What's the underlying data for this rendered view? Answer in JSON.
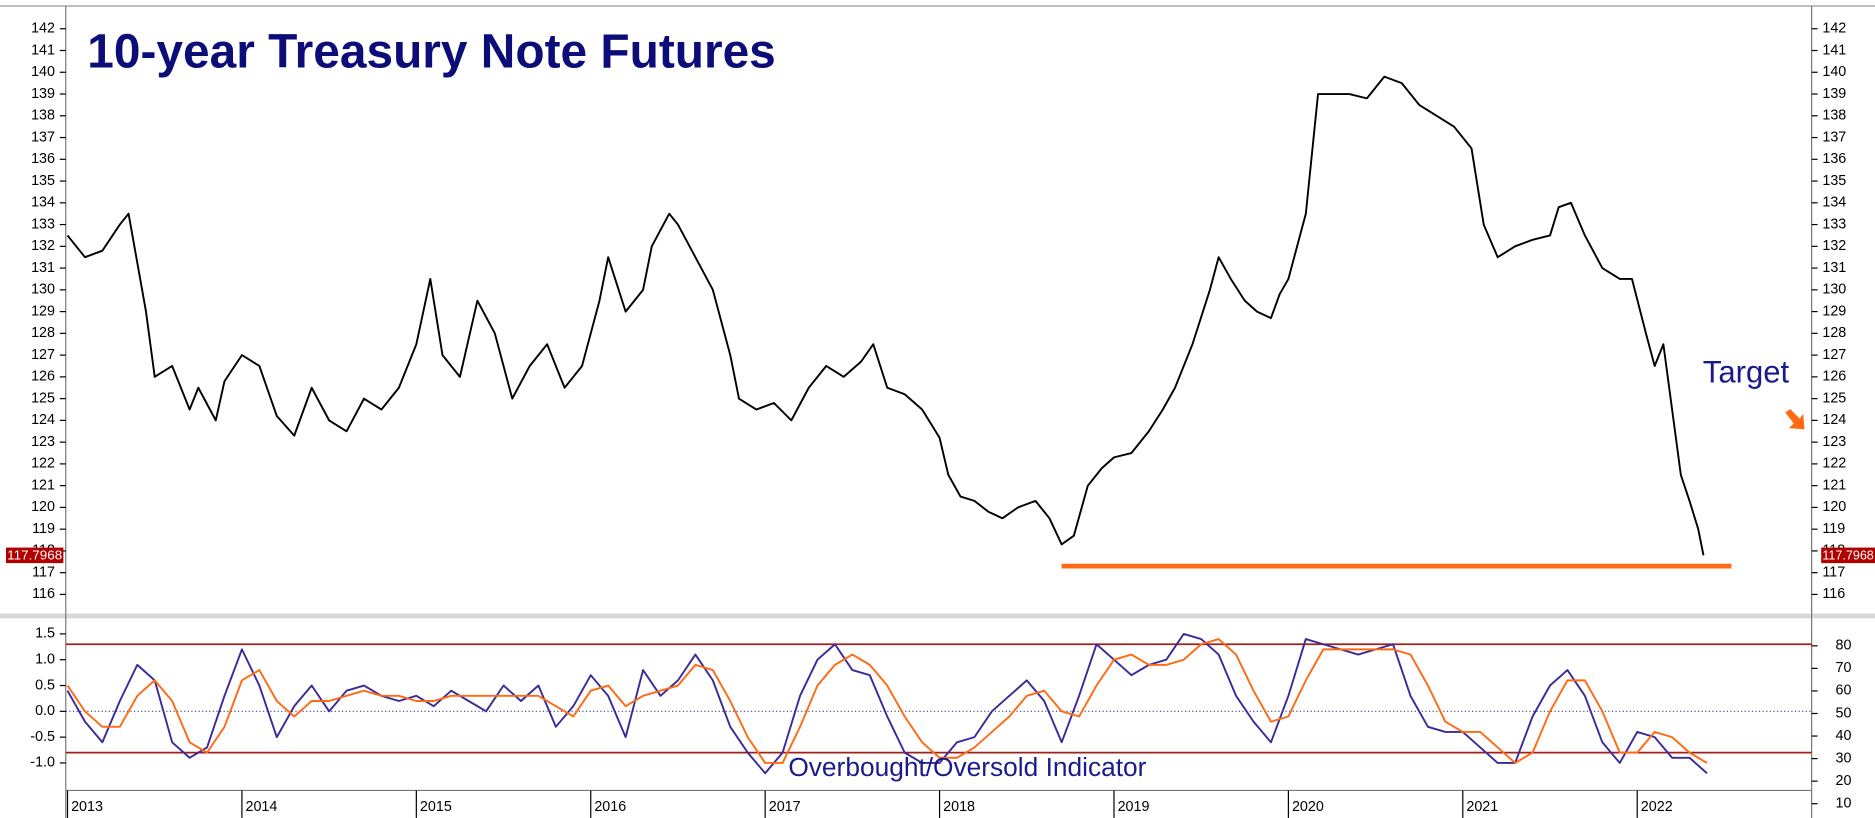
{
  "chart_data": [
    {
      "type": "line",
      "title": "10-year Treasury Note Futures",
      "annotation": "Target",
      "x": [
        2013.0,
        2013.1,
        2013.2,
        2013.3,
        2013.35,
        2013.45,
        2013.5,
        2013.6,
        2013.7,
        2013.75,
        2013.85,
        2013.9,
        2014.0,
        2014.1,
        2014.2,
        2014.3,
        2014.4,
        2014.5,
        2014.6,
        2014.7,
        2014.8,
        2014.9,
        2015.0,
        2015.08,
        2015.15,
        2015.25,
        2015.35,
        2015.45,
        2015.55,
        2015.65,
        2015.75,
        2015.85,
        2015.95,
        2016.05,
        2016.1,
        2016.2,
        2016.3,
        2016.35,
        2016.45,
        2016.5,
        2016.6,
        2016.7,
        2016.8,
        2016.85,
        2016.95,
        2017.05,
        2017.15,
        2017.25,
        2017.35,
        2017.45,
        2017.55,
        2017.62,
        2017.7,
        2017.8,
        2017.9,
        2018.0,
        2018.05,
        2018.12,
        2018.2,
        2018.28,
        2018.36,
        2018.45,
        2018.55,
        2018.63,
        2018.7,
        2018.77,
        2018.85,
        2018.93,
        2019.0,
        2019.1,
        2019.2,
        2019.28,
        2019.35,
        2019.45,
        2019.55,
        2019.6,
        2019.67,
        2019.75,
        2019.82,
        2019.9,
        2019.95,
        2020.0,
        2020.1,
        2020.17,
        2020.25,
        2020.35,
        2020.45,
        2020.55,
        2020.65,
        2020.75,
        2020.85,
        2020.95,
        2021.05,
        2021.12,
        2021.2,
        2021.3,
        2021.4,
        2021.5,
        2021.55,
        2021.62,
        2021.7,
        2021.8,
        2021.9,
        2021.97,
        2022.05,
        2022.1,
        2022.15,
        2022.2,
        2022.25,
        2022.3,
        2022.35,
        2022.38
      ],
      "series": [
        {
          "color": "#000000",
          "values": [
            132.5,
            131.5,
            131.8,
            133.0,
            133.5,
            129,
            126,
            126.5,
            124.5,
            125.5,
            124,
            125.8,
            127,
            126.5,
            124.2,
            123.3,
            125.5,
            124,
            123.5,
            125,
            124.5,
            125.5,
            127.5,
            130.5,
            127,
            126,
            129.5,
            128,
            125,
            126.5,
            127.5,
            125.5,
            126.5,
            129.5,
            131.5,
            129,
            130,
            132,
            133.5,
            133,
            131.5,
            130,
            127,
            125,
            124.5,
            124.8,
            124,
            125.5,
            126.5,
            126,
            126.7,
            127.5,
            125.5,
            125.2,
            124.5,
            123.2,
            121.5,
            120.5,
            120.3,
            119.8,
            119.5,
            120,
            120.3,
            119.5,
            118.3,
            118.7,
            121,
            121.8,
            122.3,
            122.5,
            123.5,
            124.5,
            125.5,
            127.5,
            130,
            131.5,
            130.5,
            129.5,
            129,
            128.7,
            129.8,
            130.5,
            133.5,
            139,
            139,
            139,
            138.8,
            139.8,
            139.5,
            138.5,
            138,
            137.5,
            136.5,
            133,
            131.5,
            132,
            132.3,
            132.5,
            133.8,
            134,
            132.5,
            131,
            130.5,
            130.5,
            128,
            126.5,
            127.5,
            124.5,
            121.5,
            120.3,
            119,
            117.8
          ]
        }
      ],
      "xlim": [
        2012.99,
        2023.0
      ],
      "ylim": [
        115.18,
        142.88
      ],
      "yticks": [
        116,
        117,
        118,
        119,
        120,
        121,
        122,
        123,
        124,
        125,
        126,
        127,
        128,
        129,
        130,
        131,
        132,
        133,
        134,
        135,
        136,
        137,
        138,
        139,
        140,
        141,
        142
      ],
      "last_value": 117.7968,
      "last_value_color": "#b00000",
      "support_line": {
        "value": 117.3,
        "x": [
          2018.7,
          2022.54
        ],
        "color": "#ff6a13"
      }
    },
    {
      "type": "line",
      "annotation": "Overbought/Oversold Indicator",
      "x": [
        2013.0,
        2013.1,
        2013.2,
        2013.3,
        2013.4,
        2013.5,
        2013.6,
        2013.7,
        2013.8,
        2013.9,
        2014.0,
        2014.1,
        2014.2,
        2014.3,
        2014.4,
        2014.5,
        2014.6,
        2014.7,
        2014.8,
        2014.9,
        2015.0,
        2015.1,
        2015.2,
        2015.3,
        2015.4,
        2015.5,
        2015.6,
        2015.7,
        2015.8,
        2015.9,
        2016.0,
        2016.1,
        2016.2,
        2016.3,
        2016.4,
        2016.5,
        2016.6,
        2016.7,
        2016.8,
        2016.9,
        2017.0,
        2017.1,
        2017.2,
        2017.3,
        2017.4,
        2017.5,
        2017.6,
        2017.7,
        2017.8,
        2017.9,
        2018.0,
        2018.1,
        2018.2,
        2018.3,
        2018.4,
        2018.5,
        2018.6,
        2018.7,
        2018.8,
        2018.9,
        2019.0,
        2019.1,
        2019.2,
        2019.3,
        2019.4,
        2019.5,
        2019.6,
        2019.7,
        2019.8,
        2019.9,
        2020.0,
        2020.1,
        2020.2,
        2020.3,
        2020.4,
        2020.5,
        2020.6,
        2020.7,
        2020.8,
        2020.9,
        2021.0,
        2021.1,
        2021.2,
        2021.3,
        2021.4,
        2021.5,
        2021.6,
        2021.7,
        2021.8,
        2021.9,
        2022.0,
        2022.1,
        2022.2,
        2022.3,
        2022.4
      ],
      "series": [
        {
          "color": "#3a2a9a",
          "values": [
            0.4,
            -0.2,
            -0.6,
            0.2,
            0.9,
            0.6,
            -0.6,
            -0.9,
            -0.7,
            0.3,
            1.2,
            0.5,
            -0.5,
            0.1,
            0.5,
            0,
            0.4,
            0.5,
            0.3,
            0.2,
            0.3,
            0.1,
            0.4,
            0.2,
            0,
            0.5,
            0.2,
            0.5,
            -0.3,
            0.1,
            0.7,
            0.3,
            -0.5,
            0.8,
            0.3,
            0.6,
            1.1,
            0.6,
            -0.3,
            -0.8,
            -1.2,
            -0.8,
            0.3,
            1.0,
            1.3,
            0.8,
            0.7,
            -0.1,
            -0.8,
            -1.0,
            -1.0,
            -0.6,
            -0.5,
            0,
            0.3,
            0.6,
            0.2,
            -0.6,
            0.3,
            1.3,
            1.0,
            0.7,
            0.9,
            1.0,
            1.5,
            1.4,
            1.1,
            0.3,
            -0.2,
            -0.6,
            0.3,
            1.4,
            1.3,
            1.2,
            1.1,
            1.2,
            1.3,
            0.3,
            -0.3,
            -0.4,
            -0.4,
            -0.7,
            -1.0,
            -1.0,
            -0.1,
            0.5,
            0.8,
            0.3,
            -0.6,
            -1.0,
            -0.4,
            -0.5,
            -0.9,
            -0.9,
            -1.2
          ]
        },
        {
          "color": "#ff6a13",
          "values": [
            0.5,
            0,
            -0.3,
            -0.3,
            0.3,
            0.6,
            0.2,
            -0.6,
            -0.8,
            -0.3,
            0.6,
            0.8,
            0.2,
            -0.1,
            0.2,
            0.2,
            0.3,
            0.4,
            0.3,
            0.3,
            0.2,
            0.2,
            0.3,
            0.3,
            0.3,
            0.3,
            0.3,
            0.3,
            0.1,
            -0.1,
            0.4,
            0.5,
            0.1,
            0.3,
            0.4,
            0.5,
            0.9,
            0.8,
            0.2,
            -0.5,
            -1.0,
            -1.0,
            -0.3,
            0.5,
            0.9,
            1.1,
            0.9,
            0.5,
            -0.1,
            -0.6,
            -0.9,
            -0.9,
            -0.7,
            -0.4,
            -0.1,
            0.3,
            0.4,
            0,
            -0.1,
            0.5,
            1.0,
            1.1,
            0.9,
            0.9,
            1.0,
            1.3,
            1.4,
            1.1,
            0.4,
            -0.2,
            -0.1,
            0.6,
            1.2,
            1.2,
            1.2,
            1.2,
            1.2,
            1.1,
            0.5,
            -0.2,
            -0.4,
            -0.4,
            -0.7,
            -1.0,
            -0.8,
            0,
            0.6,
            0.6,
            0,
            -0.8,
            -0.8,
            -0.4,
            -0.5,
            -0.8,
            -1.0
          ]
        }
      ],
      "xlim": [
        2012.99,
        2023.0
      ],
      "xticks": [
        2013,
        2014,
        2015,
        2016,
        2017,
        2018,
        2019,
        2020,
        2021,
        2022
      ],
      "ylim": [
        -1.51,
        1.78
      ],
      "yticks": [
        1.5,
        {
          "value": 1,
          "label": "1.0"
        },
        {
          "value": 0.5,
          "label": "0.5"
        },
        {
          "value": 0,
          "label": "0.0"
        },
        {
          "value": -0.5,
          "label": "-0.5"
        },
        {
          "value": -1,
          "label": "-1.0"
        }
      ],
      "y2lim": [
        16.4,
        91.7
      ],
      "y2ticks": [
        80,
        70,
        60,
        50,
        40,
        30,
        20,
        10
      ],
      "reference_lines": [
        {
          "value": 1.3,
          "color": "#a0201a",
          "dashed": false
        },
        {
          "value": -0.8,
          "color": "#a0201a",
          "dashed": false
        },
        {
          "value": 0,
          "color": "#3a3aa0",
          "dashed": true
        }
      ]
    }
  ]
}
